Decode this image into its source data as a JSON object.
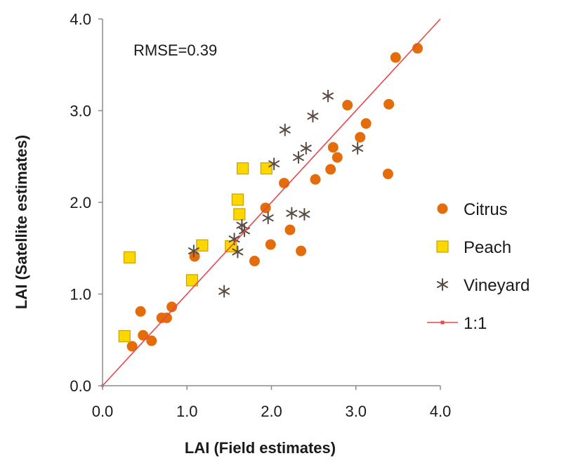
{
  "chart_data": {
    "type": "scatter",
    "xlabel": "LAI (Field estimates)",
    "ylabel": "LAI (Satellite estimates)",
    "xlim": [
      0.0,
      4.0
    ],
    "ylim": [
      0.0,
      4.0
    ],
    "xticks": [
      "0.0",
      "1.0",
      "2.0",
      "3.0",
      "4.0"
    ],
    "yticks": [
      "0.0",
      "1.0",
      "2.0",
      "3.0",
      "4.0"
    ],
    "grid": false,
    "legend_position": "right",
    "annotation": "RMSE=0.39",
    "series": [
      {
        "name": "Citrus",
        "marker": "circle",
        "color": "#E46C0A",
        "points": [
          [
            0.35,
            0.43
          ],
          [
            0.45,
            0.81
          ],
          [
            0.48,
            0.55
          ],
          [
            0.58,
            0.49
          ],
          [
            0.7,
            0.74
          ],
          [
            0.76,
            0.74
          ],
          [
            0.82,
            0.86
          ],
          [
            1.09,
            1.41
          ],
          [
            1.8,
            1.36
          ],
          [
            1.93,
            1.94
          ],
          [
            1.99,
            1.54
          ],
          [
            2.15,
            2.21
          ],
          [
            2.22,
            1.7
          ],
          [
            2.35,
            1.47
          ],
          [
            2.52,
            2.25
          ],
          [
            2.7,
            2.36
          ],
          [
            2.73,
            2.6
          ],
          [
            2.78,
            2.49
          ],
          [
            2.9,
            3.06
          ],
          [
            3.05,
            2.71
          ],
          [
            3.12,
            2.86
          ],
          [
            3.38,
            2.31
          ],
          [
            3.39,
            3.07
          ],
          [
            3.47,
            3.58
          ],
          [
            3.73,
            3.68
          ]
        ]
      },
      {
        "name": "Peach",
        "marker": "square",
        "color": "#FFD700",
        "points": [
          [
            0.26,
            0.54
          ],
          [
            0.32,
            1.4
          ],
          [
            1.06,
            1.15
          ],
          [
            1.18,
            1.53
          ],
          [
            1.52,
            1.52
          ],
          [
            1.6,
            2.03
          ],
          [
            1.62,
            1.87
          ],
          [
            1.66,
            2.37
          ],
          [
            1.94,
            2.37
          ]
        ]
      },
      {
        "name": "Vineyard",
        "marker": "asterisk",
        "color": "#5A4A42",
        "points": [
          [
            1.08,
            1.47
          ],
          [
            1.44,
            1.03
          ],
          [
            1.56,
            1.6
          ],
          [
            1.6,
            1.46
          ],
          [
            1.65,
            1.75
          ],
          [
            1.68,
            1.69
          ],
          [
            1.96,
            1.83
          ],
          [
            2.03,
            2.42
          ],
          [
            2.16,
            2.79
          ],
          [
            2.24,
            1.88
          ],
          [
            2.32,
            2.49
          ],
          [
            2.39,
            1.87
          ],
          [
            2.41,
            2.59
          ],
          [
            2.49,
            2.94
          ],
          [
            2.67,
            3.16
          ],
          [
            3.02,
            2.59
          ]
        ]
      },
      {
        "name": "1:1",
        "marker": "line",
        "color": "#E8474C",
        "points": [
          [
            0.0,
            0.0
          ],
          [
            4.0,
            4.0
          ]
        ]
      }
    ]
  }
}
